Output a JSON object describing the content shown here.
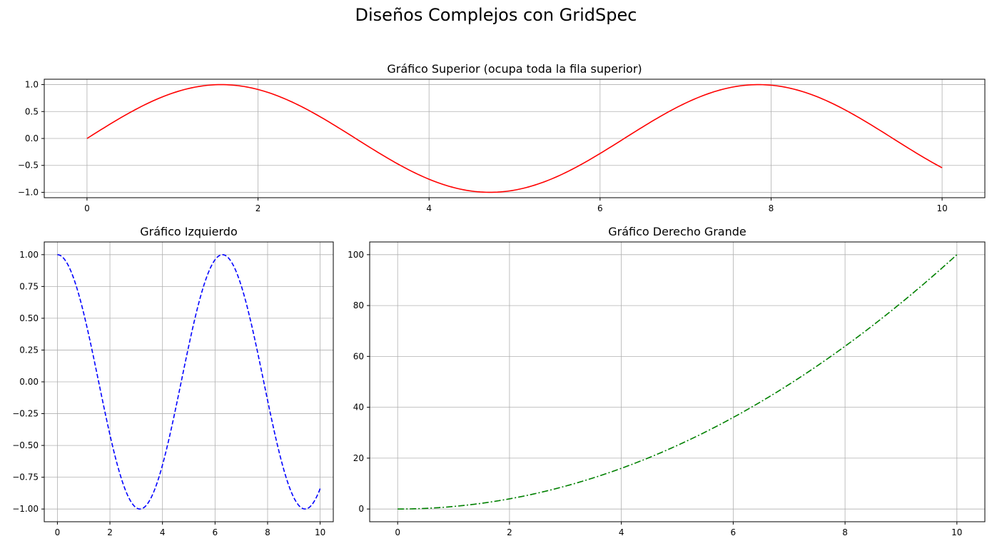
{
  "figure": {
    "suptitle": "Diseños Complejos con GridSpec"
  },
  "chart_data": [
    {
      "type": "line",
      "title": "Gráfico Superior (ocupa toda la fila superior)",
      "xlabel": "",
      "ylabel": "",
      "function": "sin(x)",
      "x_range": [
        0,
        10
      ],
      "xlim": [
        -0.5,
        10.5
      ],
      "ylim": [
        -1.1,
        1.1
      ],
      "xticks": [
        0,
        2,
        4,
        6,
        8,
        10
      ],
      "yticks": [
        1.0,
        0.5,
        0.0,
        -0.5,
        -1.0
      ],
      "xtick_labels": [
        "0",
        "2",
        "4",
        "6",
        "8",
        "10"
      ],
      "ytick_labels": [
        "1.0",
        "0.5",
        "0.0",
        "−0.5",
        "−1.0"
      ],
      "grid": true,
      "series": [
        {
          "color": "#ff0000",
          "linestyle": "solid",
          "x": [
            0,
            1,
            2,
            3,
            4,
            5,
            6,
            7,
            8,
            9,
            10
          ],
          "y": [
            0.0,
            0.841,
            0.909,
            0.141,
            -0.757,
            -0.959,
            -0.279,
            0.657,
            0.989,
            0.412,
            -0.544
          ]
        }
      ]
    },
    {
      "type": "line",
      "title": "Gráfico Izquierdo",
      "xlabel": "",
      "ylabel": "",
      "function": "cos(x)",
      "x_range": [
        0,
        10
      ],
      "xlim": [
        -0.5,
        10.5
      ],
      "ylim": [
        -1.1,
        1.1
      ],
      "xticks": [
        0,
        2,
        4,
        6,
        8,
        10
      ],
      "yticks": [
        1.0,
        0.75,
        0.5,
        0.25,
        0.0,
        -0.25,
        -0.5,
        -0.75,
        -1.0
      ],
      "xtick_labels": [
        "0",
        "2",
        "4",
        "6",
        "8",
        "10"
      ],
      "ytick_labels": [
        "1.00",
        "0.75",
        "0.50",
        "0.25",
        "0.00",
        "−0.25",
        "−0.50",
        "−0.75",
        "−1.00"
      ],
      "grid": true,
      "series": [
        {
          "color": "#0000ff",
          "linestyle": "dashed",
          "x": [
            0,
            1,
            2,
            3,
            4,
            5,
            6,
            7,
            8,
            9,
            10
          ],
          "y": [
            1.0,
            0.54,
            -0.416,
            -0.99,
            -0.654,
            0.284,
            0.96,
            0.754,
            -0.146,
            -0.911,
            -0.839
          ]
        }
      ]
    },
    {
      "type": "line",
      "title": "Gráfico Derecho Grande",
      "xlabel": "",
      "ylabel": "",
      "function": "x^2",
      "x_range": [
        0,
        10
      ],
      "xlim": [
        -0.5,
        10.5
      ],
      "ylim": [
        -5,
        105
      ],
      "xticks": [
        0,
        2,
        4,
        6,
        8,
        10
      ],
      "yticks": [
        100,
        80,
        60,
        40,
        20,
        0
      ],
      "xtick_labels": [
        "0",
        "2",
        "4",
        "6",
        "8",
        "10"
      ],
      "ytick_labels": [
        "100",
        "80",
        "60",
        "40",
        "20",
        "0"
      ],
      "grid": true,
      "series": [
        {
          "color": "#008000",
          "linestyle": "dashdot",
          "x": [
            0,
            1,
            2,
            3,
            4,
            5,
            6,
            7,
            8,
            9,
            10
          ],
          "y": [
            0,
            1,
            4,
            9,
            16,
            25,
            36,
            49,
            64,
            81,
            100
          ]
        }
      ]
    }
  ]
}
